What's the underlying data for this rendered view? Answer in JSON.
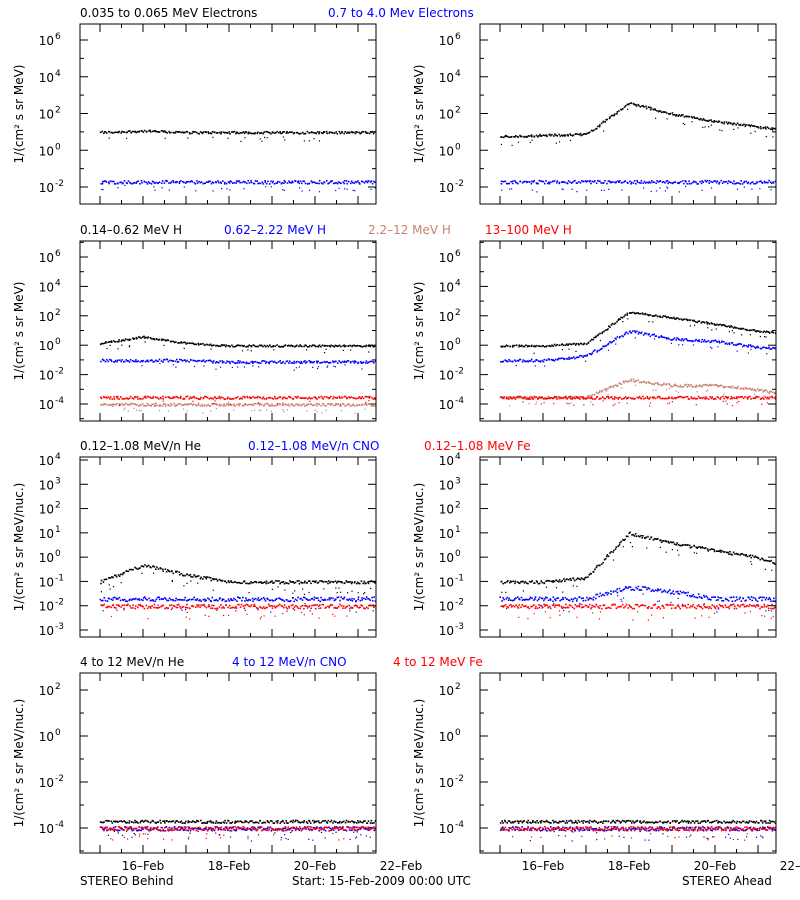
{
  "colors": {
    "black": "#000000",
    "blue": "#0000ff",
    "tan": "#c8826e",
    "red": "#ff0000"
  },
  "footer": {
    "left": "STEREO Behind",
    "center": "Start: 15-Feb-2009 00:00 UTC",
    "right": "STEREO Ahead"
  },
  "rows": [
    {
      "legend": [
        {
          "text": "0.035 to 0.065 MeV Electrons",
          "color": "#000000"
        },
        {
          "text": "0.7 to 4.0 Mev Electrons",
          "color": "#0000ff"
        }
      ],
      "ylabel": "1/(cm² s sr MeV)",
      "yticks": [
        {
          "base": "10",
          "exp": "6"
        },
        {
          "base": "10",
          "exp": "4"
        },
        {
          "base": "10",
          "exp": "2"
        },
        {
          "base": "10",
          "exp": "0"
        },
        {
          "base": "10",
          "exp": "-2"
        }
      ]
    },
    {
      "legend": [
        {
          "text": "0.14–0.62 MeV H",
          "color": "#000000"
        },
        {
          "text": "0.62–2.22 MeV H",
          "color": "#0000ff"
        },
        {
          "text": "2.2–12 MeV H",
          "color": "#c8826e"
        },
        {
          "text": "13–100 MeV H",
          "color": "#ff0000"
        }
      ],
      "ylabel": "1/(cm² s sr MeV)",
      "yticks": [
        {
          "base": "10",
          "exp": "6"
        },
        {
          "base": "10",
          "exp": "4"
        },
        {
          "base": "10",
          "exp": "2"
        },
        {
          "base": "10",
          "exp": "0"
        },
        {
          "base": "10",
          "exp": "-2"
        },
        {
          "base": "10",
          "exp": "-4"
        }
      ]
    },
    {
      "legend": [
        {
          "text": "0.12–1.08 MeV/n He",
          "color": "#000000"
        },
        {
          "text": "0.12–1.08 MeV/n CNO",
          "color": "#0000ff"
        },
        {
          "text": "0.12–1.08 MeV Fe",
          "color": "#ff0000"
        }
      ],
      "ylabel": "1/(cm² s sr MeV/nuc.)",
      "yticks": [
        {
          "base": "10",
          "exp": "4"
        },
        {
          "base": "10",
          "exp": "3"
        },
        {
          "base": "10",
          "exp": "2"
        },
        {
          "base": "10",
          "exp": "1"
        },
        {
          "base": "10",
          "exp": "0"
        },
        {
          "base": "10",
          "exp": "-1"
        },
        {
          "base": "10",
          "exp": "-2"
        },
        {
          "base": "10",
          "exp": "-3"
        }
      ]
    },
    {
      "legend": [
        {
          "text": "4 to 12 MeV/n He",
          "color": "#000000"
        },
        {
          "text": "4 to 12 MeV/n CNO",
          "color": "#0000ff"
        },
        {
          "text": "4 to 12 MeV Fe",
          "color": "#ff0000"
        }
      ],
      "ylabel": "1/(cm² s sr MeV/nuc.)",
      "yticks": [
        {
          "base": "10",
          "exp": "2"
        },
        {
          "base": "10",
          "exp": "0"
        },
        {
          "base": "10",
          "exp": "-2"
        },
        {
          "base": "10",
          "exp": "-4"
        }
      ]
    }
  ],
  "xticks": [
    "16–Feb",
    "18–Feb",
    "20–Feb",
    "22–Feb"
  ],
  "chart_data": [
    {
      "type": "scatter",
      "panel": "STEREO Behind electrons",
      "ylog": true,
      "ylim": [
        0.001,
        10000000
      ],
      "x": [
        "15-Feb-2009",
        "16-Feb",
        "17-Feb",
        "18-Feb",
        "19-Feb",
        "20-Feb",
        "21-Feb",
        "22-Feb"
      ],
      "series": [
        {
          "name": "0.035 to 0.065 MeV Electrons",
          "color": "#000000",
          "values": [
            10,
            12,
            10,
            10,
            10,
            10,
            10,
            10
          ]
        },
        {
          "name": "0.7 to 4.0 Mev Electrons",
          "color": "#0000ff",
          "values": [
            0.02,
            0.02,
            0.02,
            0.02,
            0.02,
            0.02,
            0.02,
            0.02
          ]
        }
      ]
    },
    {
      "type": "scatter",
      "panel": "STEREO Ahead electrons",
      "ylog": true,
      "ylim": [
        0.001,
        10000000
      ],
      "x": [
        "15-Feb-2009",
        "16-Feb",
        "17-Feb",
        "18-Feb",
        "19-Feb",
        "20-Feb",
        "21-Feb",
        "22-Feb"
      ],
      "series": [
        {
          "name": "0.035 to 0.065 MeV Electrons",
          "color": "#000000",
          "values": [
            6,
            7,
            8,
            400,
            100,
            40,
            20,
            10
          ]
        },
        {
          "name": "0.7 to 4.0 Mev Electrons",
          "color": "#0000ff",
          "values": [
            0.02,
            0.02,
            0.02,
            0.02,
            0.02,
            0.02,
            0.02,
            0.02
          ]
        }
      ]
    },
    {
      "type": "scatter",
      "panel": "STEREO Behind protons",
      "ylog": true,
      "ylim": [
        1e-05,
        10000000
      ],
      "x": [
        "15-Feb-2009",
        "16-Feb",
        "17-Feb",
        "18-Feb",
        "19-Feb",
        "20-Feb",
        "21-Feb",
        "22-Feb"
      ],
      "series": [
        {
          "name": "0.14–0.62 MeV H",
          "color": "#000000",
          "values": [
            1.5,
            4,
            1.5,
            1,
            1,
            1,
            1,
            1
          ]
        },
        {
          "name": "0.62–2.22 MeV H",
          "color": "#0000ff",
          "values": [
            0.1,
            0.1,
            0.1,
            0.08,
            0.08,
            0.08,
            0.08,
            0.08
          ]
        },
        {
          "name": "2.2–12 MeV H",
          "color": "#c8826e",
          "values": [
            0.0001,
            0.0001,
            0.0001,
            0.0001,
            0.0001,
            0.0001,
            0.0001,
            0.0001
          ]
        },
        {
          "name": "13–100 MeV H",
          "color": "#ff0000",
          "values": [
            0.0003,
            0.0003,
            0.0003,
            0.0003,
            0.0003,
            0.0003,
            0.0003,
            0.0003
          ]
        }
      ]
    },
    {
      "type": "scatter",
      "panel": "STEREO Ahead protons",
      "ylog": true,
      "ylim": [
        1e-05,
        10000000
      ],
      "x": [
        "15-Feb-2009",
        "16-Feb",
        "17-Feb",
        "18-Feb",
        "19-Feb",
        "20-Feb",
        "21-Feb",
        "22-Feb"
      ],
      "series": [
        {
          "name": "0.14–0.62 MeV H",
          "color": "#000000",
          "values": [
            1,
            1,
            1.5,
            200,
            80,
            30,
            10,
            5
          ]
        },
        {
          "name": "0.62–2.22 MeV H",
          "color": "#0000ff",
          "values": [
            0.1,
            0.1,
            0.2,
            10,
            3,
            2,
            0.8,
            0.5
          ]
        },
        {
          "name": "2.2–12 MeV H",
          "color": "#c8826e",
          "values": [
            0.0003,
            0.0003,
            0.0003,
            0.005,
            0.002,
            0.002,
            0.001,
            0.0003
          ]
        },
        {
          "name": "13–100 MeV H",
          "color": "#ff0000",
          "values": [
            0.0003,
            0.0003,
            0.0003,
            0.0003,
            0.0003,
            0.0003,
            0.0003,
            0.0003
          ]
        }
      ]
    },
    {
      "type": "scatter",
      "panel": "STEREO Behind suprathermal ions",
      "ylog": true,
      "ylim": [
        0.001,
        10000
      ],
      "x": [
        "15-Feb-2009",
        "16-Feb",
        "17-Feb",
        "18-Feb",
        "19-Feb",
        "20-Feb",
        "21-Feb",
        "22-Feb"
      ],
      "series": [
        {
          "name": "0.12–1.08 MeV/n He",
          "color": "#000000",
          "values": [
            0.1,
            0.5,
            0.2,
            0.1,
            0.1,
            0.1,
            0.1,
            0.1
          ]
        },
        {
          "name": "0.12–1.08 MeV/n CNO",
          "color": "#0000ff",
          "values": [
            0.02,
            0.02,
            0.02,
            0.02,
            0.02,
            0.02,
            0.02,
            0.02
          ]
        },
        {
          "name": "0.12–1.08 MeV Fe",
          "color": "#ff0000",
          "values": [
            0.01,
            0.01,
            0.01,
            0.01,
            0.01,
            0.01,
            0.01,
            0.01
          ]
        }
      ]
    },
    {
      "type": "scatter",
      "panel": "STEREO Ahead suprathermal ions",
      "ylog": true,
      "ylim": [
        0.001,
        10000
      ],
      "x": [
        "15-Feb-2009",
        "16-Feb",
        "17-Feb",
        "18-Feb",
        "19-Feb",
        "20-Feb",
        "21-Feb",
        "22-Feb"
      ],
      "series": [
        {
          "name": "0.12–1.08 MeV/n He",
          "color": "#000000",
          "values": [
            0.1,
            0.1,
            0.15,
            10,
            4,
            2,
            1,
            0.3
          ]
        },
        {
          "name": "0.12–1.08 MeV/n CNO",
          "color": "#0000ff",
          "values": [
            0.02,
            0.02,
            0.02,
            0.06,
            0.04,
            0.02,
            0.02,
            0.02
          ]
        },
        {
          "name": "0.12–1.08 MeV Fe",
          "color": "#ff0000",
          "values": [
            0.01,
            0.01,
            0.01,
            0.01,
            0.01,
            0.01,
            0.01,
            0.01
          ]
        }
      ]
    },
    {
      "type": "scatter",
      "panel": "STEREO Behind energetic ions",
      "ylog": true,
      "ylim": [
        1e-06,
        10000
      ],
      "x": [
        "15-Feb-2009",
        "16-Feb",
        "17-Feb",
        "18-Feb",
        "19-Feb",
        "20-Feb",
        "21-Feb",
        "22-Feb"
      ],
      "series": [
        {
          "name": "4 to 12 MeV/n He",
          "color": "#000000",
          "values": [
            0.0002,
            0.0002,
            0.0002,
            0.0002,
            0.0002,
            0.0002,
            0.0002,
            0.0002
          ]
        },
        {
          "name": "4 to 12 MeV/n CNO",
          "color": "#0000ff",
          "values": [
            0.0001,
            0.0001,
            0.0001,
            0.0001,
            0.0001,
            0.0001,
            0.0001,
            0.0001
          ]
        },
        {
          "name": "4 to 12 MeV Fe",
          "color": "#ff0000",
          "values": [
            0.0001,
            0.0001,
            0.0001,
            0.0001,
            0.0001,
            0.0001,
            0.0001,
            0.0001
          ]
        }
      ]
    },
    {
      "type": "scatter",
      "panel": "STEREO Ahead energetic ions",
      "ylog": true,
      "ylim": [
        1e-06,
        10000
      ],
      "x": [
        "15-Feb-2009",
        "16-Feb",
        "17-Feb",
        "18-Feb",
        "19-Feb",
        "20-Feb",
        "21-Feb",
        "22-Feb"
      ],
      "series": [
        {
          "name": "4 to 12 MeV/n He",
          "color": "#000000",
          "values": [
            0.0002,
            0.0002,
            0.0002,
            0.0002,
            0.0002,
            0.0002,
            0.0002,
            0.0002
          ]
        },
        {
          "name": "4 to 12 MeV/n CNO",
          "color": "#0000ff",
          "values": [
            0.0001,
            0.0001,
            0.0001,
            0.0001,
            0.0001,
            0.0001,
            0.0001,
            0.0001
          ]
        },
        {
          "name": "4 to 12 MeV Fe",
          "color": "#ff0000",
          "values": [
            0.0001,
            0.0001,
            0.0001,
            0.0001,
            0.0001,
            0.0001,
            0.0001,
            0.0001
          ]
        }
      ]
    }
  ]
}
